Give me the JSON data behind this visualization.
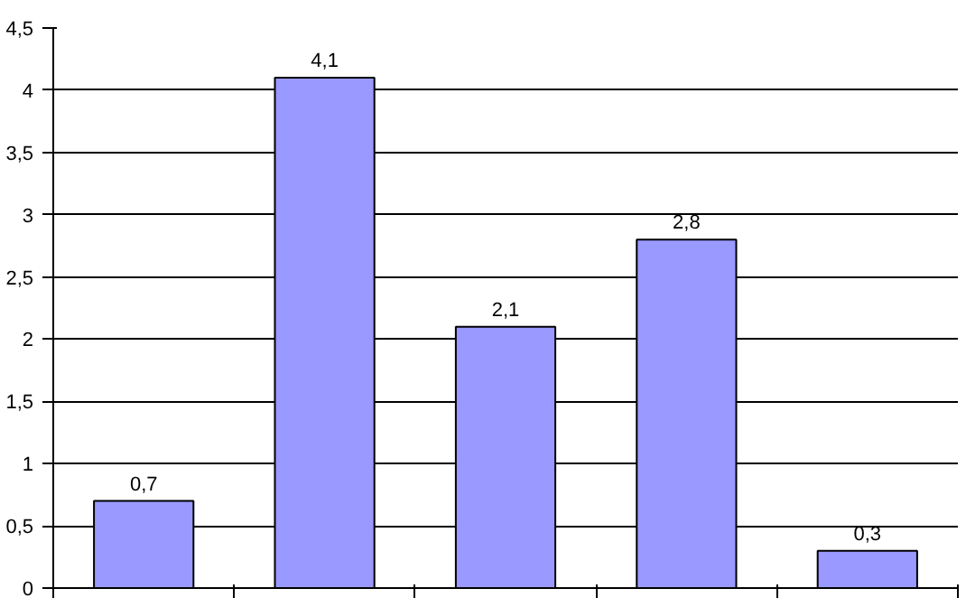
{
  "chart_data": {
    "type": "bar",
    "categories": [
      null,
      null,
      null,
      null,
      null
    ],
    "values": [
      0.7,
      4.1,
      2.1,
      2.8,
      0.3
    ],
    "color": "#9999ff",
    "value_labels": [
      "0,7",
      "4,1",
      "2,1",
      "2,8",
      "0,3"
    ],
    "ylim": [
      0,
      4.5
    ],
    "yticks": [
      0,
      {
        "value": 0.5,
        "label": "0,5"
      },
      1,
      {
        "value": 1.5,
        "label": "1,5"
      },
      2,
      {
        "value": 2.5,
        "label": "2,5"
      },
      3,
      {
        "value": 3.5,
        "label": "3,5"
      },
      4,
      {
        "value": 4.5,
        "label": "4,5"
      }
    ],
    "grid": "y",
    "tick_labels": "y"
  }
}
